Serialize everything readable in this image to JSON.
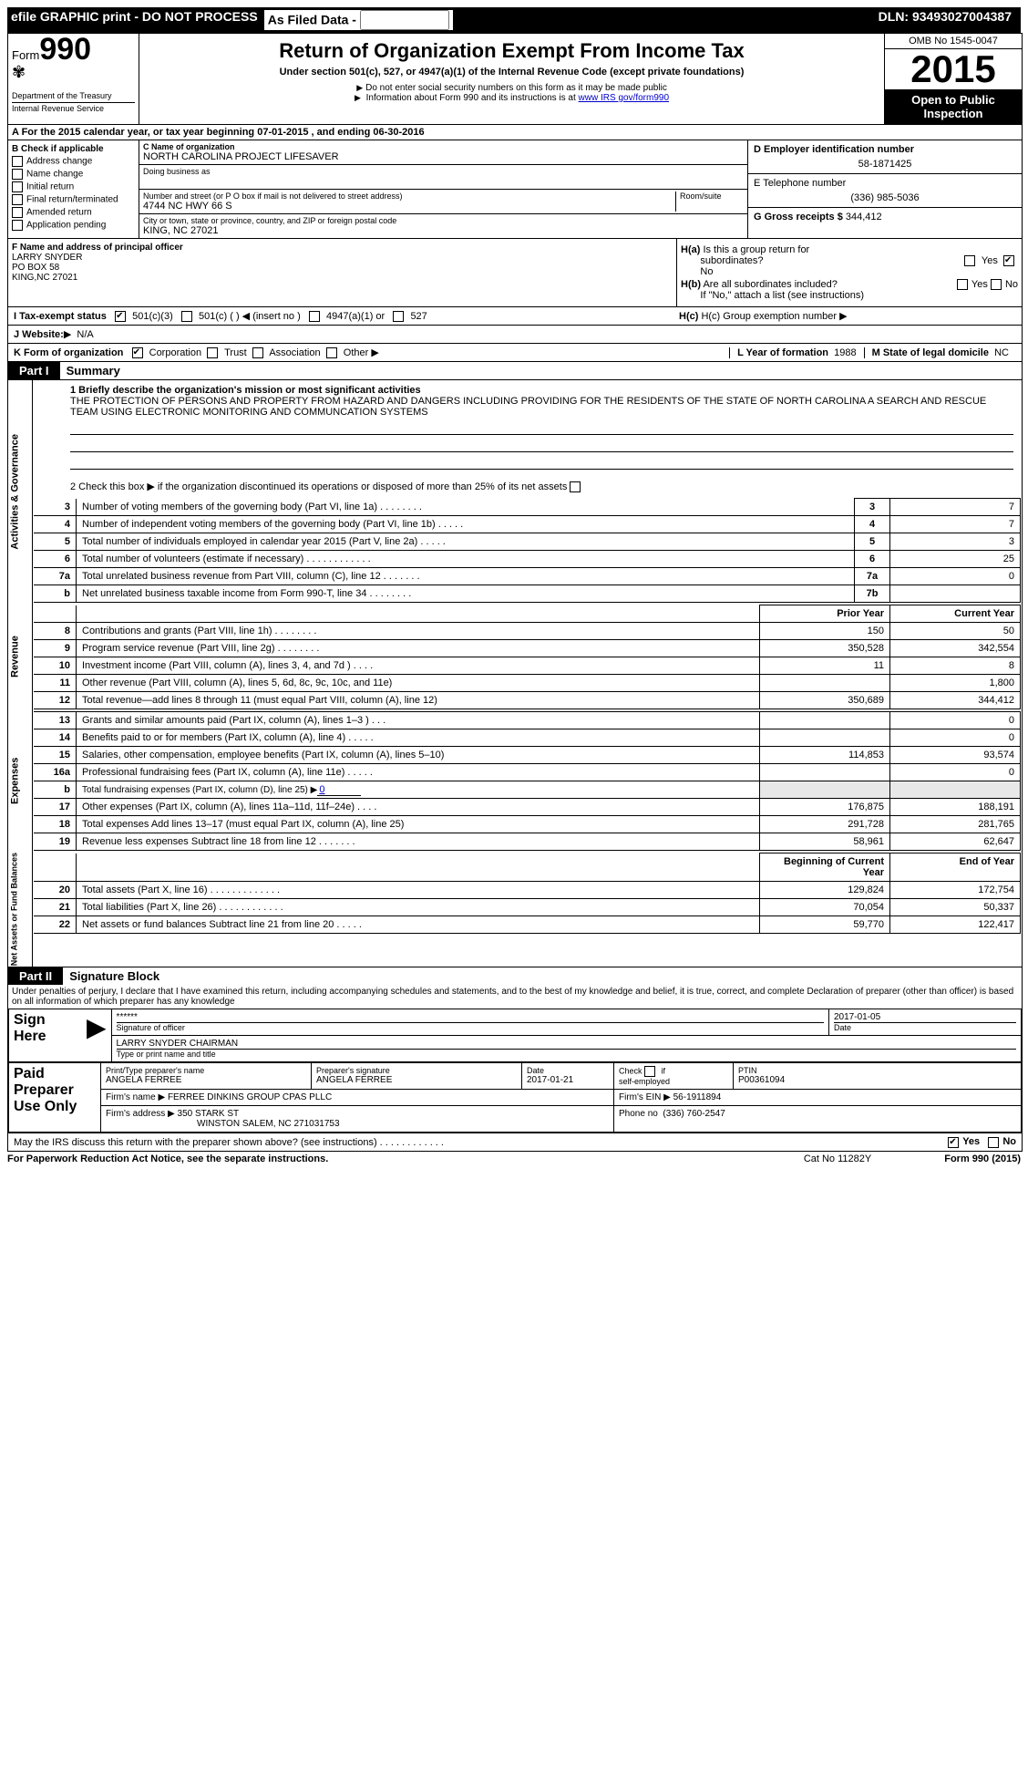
{
  "topbar": {
    "efile": "efile GRAPHIC print - DO NOT PROCESS",
    "asfiled": "As Filed Data -",
    "dln_label": "DLN:",
    "dln": "93493027004387"
  },
  "header": {
    "form_label": "Form",
    "form_num": "990",
    "dept": "Department of the Treasury",
    "irs": "Internal Revenue Service",
    "title": "Return of Organization Exempt From Income Tax",
    "sub": "Under section 501(c), 527, or 4947(a)(1) of the Internal Revenue Code (except private foundations)",
    "note1": "Do not enter social security numbers on this form as it may be made public",
    "note2_pre": "Information about Form 990 and its instructions is at ",
    "note2_link": "www IRS gov/form990",
    "omb": "OMB No 1545-0047",
    "year": "2015",
    "open": "Open to Public Inspection"
  },
  "rowA": {
    "text_pre": "A  For the 2015 calendar year, or tax year beginning ",
    "begin": "07-01-2015",
    "mid": " , and ending ",
    "end": "06-30-2016"
  },
  "colB": {
    "hdr": "B Check if applicable",
    "c1": "Address change",
    "c2": "Name change",
    "c3": "Initial return",
    "c4": "Final return/terminated",
    "c5": "Amended return",
    "c6": "Application pending"
  },
  "colC": {
    "name_lbl": "C Name of organization",
    "name": "NORTH CAROLINA PROJECT LIFESAVER",
    "dba_lbl": "Doing business as",
    "addr_lbl": "Number and street (or P O box if mail is not delivered to street address)",
    "room_lbl": "Room/suite",
    "addr": "4744 NC HWY 66 S",
    "city_lbl": "City or town, state or province, country, and ZIP or foreign postal code",
    "city": "KING, NC  27021"
  },
  "colD": {
    "ein_lbl": "D Employer identification number",
    "ein": "58-1871425",
    "tel_lbl": "E Telephone number",
    "tel": "(336) 985-5036",
    "gross_lbl": "G Gross receipts $",
    "gross": "344,412"
  },
  "F": {
    "lbl": "F Name and address of principal officer",
    "name": "LARRY SNYDER",
    "addr1": "PO BOX 58",
    "addr2": "KING,NC  27021"
  },
  "H": {
    "a_lbl": "H(a)  Is this a group return for subordinates?",
    "a_no": "No",
    "yes": "Yes",
    "no": "No",
    "b_lbl": "H(b) Are all subordinates included?",
    "b_note": "If \"No,\" attach a list  (see instructions)",
    "c_lbl": "H(c)  Group exemption number"
  },
  "I": {
    "lbl": "I  Tax-exempt status",
    "o1": "501(c)(3)",
    "o2": "501(c) (   )",
    "o2b": "(insert no )",
    "o3": "4947(a)(1) or",
    "o4": "527"
  },
  "J": {
    "lbl": "J  Website:",
    "val": "N/A"
  },
  "K": {
    "lbl": "K Form of organization",
    "o1": "Corporation",
    "o2": "Trust",
    "o3": "Association",
    "o4": "Other"
  },
  "L": {
    "lbl": "L Year of formation",
    "val": "1988"
  },
  "M": {
    "lbl": "M State of legal domicile",
    "val": "NC"
  },
  "part1": {
    "hdr": "Part I",
    "title": "Summary",
    "l1_lbl": "1 Briefly describe the organization's mission or most significant activities",
    "mission": "THE PROTECTION OF PERSONS AND PROPERTY FROM HAZARD AND DANGERS INCLUDING PROVIDING FOR THE RESIDENTS OF THE STATE OF NORTH CAROLINA A SEARCH AND RESCUE TEAM USING ELECTRONIC MONITORING AND COMMUNCATION SYSTEMS",
    "l2": "2 Check this box ▶     if the organization discontinued its operations or disposed of more than 25% of its net assets",
    "rows_gov": [
      {
        "n": "3",
        "t": "Number of voting members of the governing body (Part VI, line 1a)  .   .   .   .   .   .   .   .",
        "rn": "3",
        "v": "7"
      },
      {
        "n": "4",
        "t": "Number of independent voting members of the governing body (Part VI, line 1b)  .   .   .   .   .",
        "rn": "4",
        "v": "7"
      },
      {
        "n": "5",
        "t": "Total number of individuals employed in calendar year 2015 (Part V, line 2a)   .   .   .   .   .",
        "rn": "5",
        "v": "3"
      },
      {
        "n": "6",
        "t": "Total number of volunteers (estimate if necessary)   .   .   .   .   .   .   .   .   .   .   .   .",
        "rn": "6",
        "v": "25"
      },
      {
        "n": "7a",
        "t": "Total unrelated business revenue from Part VIII, column (C), line 12   .   .   .   .   .   .   .",
        "rn": "7a",
        "v": "0"
      },
      {
        "n": "b",
        "t": "Net unrelated business taxable income from Form 990-T, line 34    .   .   .   .   .   .   .   .",
        "rn": "7b",
        "v": ""
      }
    ],
    "col_prior": "Prior Year",
    "col_curr": "Current Year",
    "rows_rev": [
      {
        "n": "8",
        "t": "Contributions and grants (Part VIII, line 1h)   .   .   .   .   .   .   .   .",
        "p": "150",
        "c": "50"
      },
      {
        "n": "9",
        "t": "Program service revenue (Part VIII, line 2g)   .   .   .   .   .   .   .   .",
        "p": "350,528",
        "c": "342,554"
      },
      {
        "n": "10",
        "t": "Investment income (Part VIII, column (A), lines 3, 4, and 7d )   .   .   .   .",
        "p": "11",
        "c": "8"
      },
      {
        "n": "11",
        "t": "Other revenue (Part VIII, column (A), lines 5, 6d, 8c, 9c, 10c, and 11e)",
        "p": "",
        "c": "1,800"
      },
      {
        "n": "12",
        "t": "Total revenue—add lines 8 through 11 (must equal Part VIII, column (A), line 12)",
        "p": "350,689",
        "c": "344,412"
      }
    ],
    "rows_exp": [
      {
        "n": "13",
        "t": "Grants and similar amounts paid (Part IX, column (A), lines 1–3 )   .   .   .",
        "p": "",
        "c": "0"
      },
      {
        "n": "14",
        "t": "Benefits paid to or for members (Part IX, column (A), line 4)   .   .   .   .   .",
        "p": "",
        "c": "0"
      },
      {
        "n": "15",
        "t": "Salaries, other compensation, employee benefits (Part IX, column (A), lines 5–10)",
        "p": "114,853",
        "c": "93,574"
      },
      {
        "n": "16a",
        "t": "Professional fundraising fees (Part IX, column (A), line 11e)   .   .   .   .   .",
        "p": "",
        "c": "0"
      },
      {
        "n": "b",
        "t": "Total fundraising expenses (Part IX, column (D), line 25) ▶",
        "p": "__SHADE__",
        "c": "__SHADE__",
        "extra": "0"
      },
      {
        "n": "17",
        "t": "Other expenses (Part IX, column (A), lines 11a–11d, 11f–24e)   .   .   .   .",
        "p": "176,875",
        "c": "188,191"
      },
      {
        "n": "18",
        "t": "Total expenses  Add lines 13–17 (must equal Part IX, column (A), line 25)",
        "p": "291,728",
        "c": "281,765"
      },
      {
        "n": "19",
        "t": "Revenue less expenses  Subtract line 18 from line 12   .   .   .   .   .   .   .",
        "p": "58,961",
        "c": "62,647"
      }
    ],
    "col_begin": "Beginning of Current Year",
    "col_end": "End of Year",
    "rows_net": [
      {
        "n": "20",
        "t": "Total assets (Part X, line 16)   .   .   .   .   .   .   .   .   .   .   .   .   .",
        "p": "129,824",
        "c": "172,754"
      },
      {
        "n": "21",
        "t": "Total liabilities (Part X, line 26)   .   .   .   .   .   .   .   .   .   .   .   .",
        "p": "70,054",
        "c": "50,337"
      },
      {
        "n": "22",
        "t": "Net assets or fund balances  Subtract line 21 from line 20   .   .   .   .   .",
        "p": "59,770",
        "c": "122,417"
      }
    ],
    "vert_gov": "Activities & Governance",
    "vert_rev": "Revenue",
    "vert_exp": "Expenses",
    "vert_net": "Net Assets or Fund Balances"
  },
  "part2": {
    "hdr": "Part II",
    "title": "Signature Block",
    "perjury": "Under penalties of perjury, I declare that I have examined this return, including accompanying schedules and statements, and to the best of my knowledge and belief, it is true, correct, and complete  Declaration of preparer (other than officer) is based on all information of which preparer has any knowledge",
    "sign_here": "Sign Here",
    "sig_stars": "******",
    "sig_officer": "Signature of officer",
    "sig_date_lbl": "Date",
    "sig_date": "2017-01-05",
    "typed": "LARRY SNYDER CHAIRMAN",
    "typed_lbl": "Type or print name and title",
    "paid": "Paid Preparer Use Only",
    "prep_name_lbl": "Print/Type preparer's name",
    "prep_name": "ANGELA FERREE",
    "prep_sig_lbl": "Preparer's signature",
    "prep_sig": "ANGELA FERREE",
    "prep_date_lbl": "Date",
    "prep_date": "2017-01-21",
    "check_self": "Check         if self-employed",
    "ptin_lbl": "PTIN",
    "ptin": "P00361094",
    "firm_name_lbl": "Firm's name    ▶",
    "firm_name": "FERREE DINKINS GROUP CPAS PLLC",
    "firm_ein_lbl": "Firm's EIN ▶",
    "firm_ein": "56-1911894",
    "firm_addr_lbl": "Firm's address ▶",
    "firm_addr": "350 STARK ST",
    "firm_city": "WINSTON SALEM, NC  271031753",
    "phone_lbl": "Phone no",
    "phone": "(336) 760-2547",
    "discuss": "May the IRS discuss this return with the preparer shown above? (see instructions)   .   .   .   .   .   .   .   .   .   .   .   .",
    "discuss_yes": "Yes",
    "discuss_no": "No"
  },
  "footer": {
    "left": "For Paperwork Reduction Act Notice, see the separate instructions.",
    "mid": "Cat No 11282Y",
    "right": "Form 990 (2015)"
  }
}
